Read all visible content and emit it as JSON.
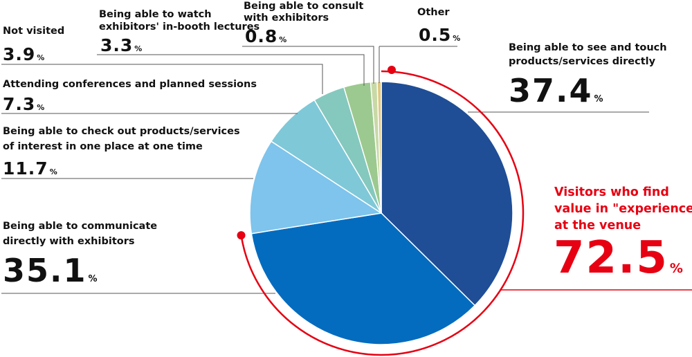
{
  "chart_data": {
    "type": "pie",
    "unit": "%",
    "slices": [
      {
        "label": "Being able to see and touch products/services directly",
        "value": 37.4,
        "color": "#1f4e96"
      },
      {
        "label": "Being able to communicate directly with exhibitors",
        "value": 35.1,
        "color": "#046cbf"
      },
      {
        "label": "Being able to check out products/services of interest in one place at one time",
        "value": 11.7,
        "color": "#7ec4ec"
      },
      {
        "label": "Attending conferences and planned sessions",
        "value": 7.3,
        "color": "#7fc8d8"
      },
      {
        "label": "Not visited",
        "value": 3.9,
        "color": "#85c8be"
      },
      {
        "label": "Being able to watch exhibitors' in-booth lectures",
        "value": 3.3,
        "color": "#9cc98f"
      },
      {
        "label": "Being able to consult with exhibitors",
        "value": 0.8,
        "color": "#c8d9a6"
      },
      {
        "label": "Other",
        "value": 0.5,
        "color": "#e0c880"
      }
    ],
    "highlight": {
      "label_lines": [
        "Visitors who find",
        "value in \"experience\"",
        "at the venue"
      ],
      "value": "72.5",
      "unit": "%",
      "color": "#e60012"
    }
  },
  "labels": {
    "see_touch": {
      "l1": "Being able to see and touch",
      "l2": "products/services directly",
      "value": "37.4"
    },
    "communicate": {
      "l1": "Being able to communicate",
      "l2": "directly with exhibitors",
      "value": "35.1"
    },
    "check_out": {
      "l1": "Being able to check out products/services",
      "l2": "of interest in one place at one time",
      "value": "11.7"
    },
    "conferences": {
      "l1": "Attending conferences and planned sessions",
      "value": "7.3"
    },
    "not_visited": {
      "l1": "Not visited",
      "value": "3.9"
    },
    "lectures": {
      "l1": "Being able to watch",
      "l2": "exhibitors' in-booth lectures",
      "value": "3.3"
    },
    "consult": {
      "l1": "Being able to consult",
      "l2": "with exhibitors",
      "value": "0.8"
    },
    "other": {
      "l1": "Other",
      "value": "0.5"
    }
  },
  "unit_symbol": "%"
}
